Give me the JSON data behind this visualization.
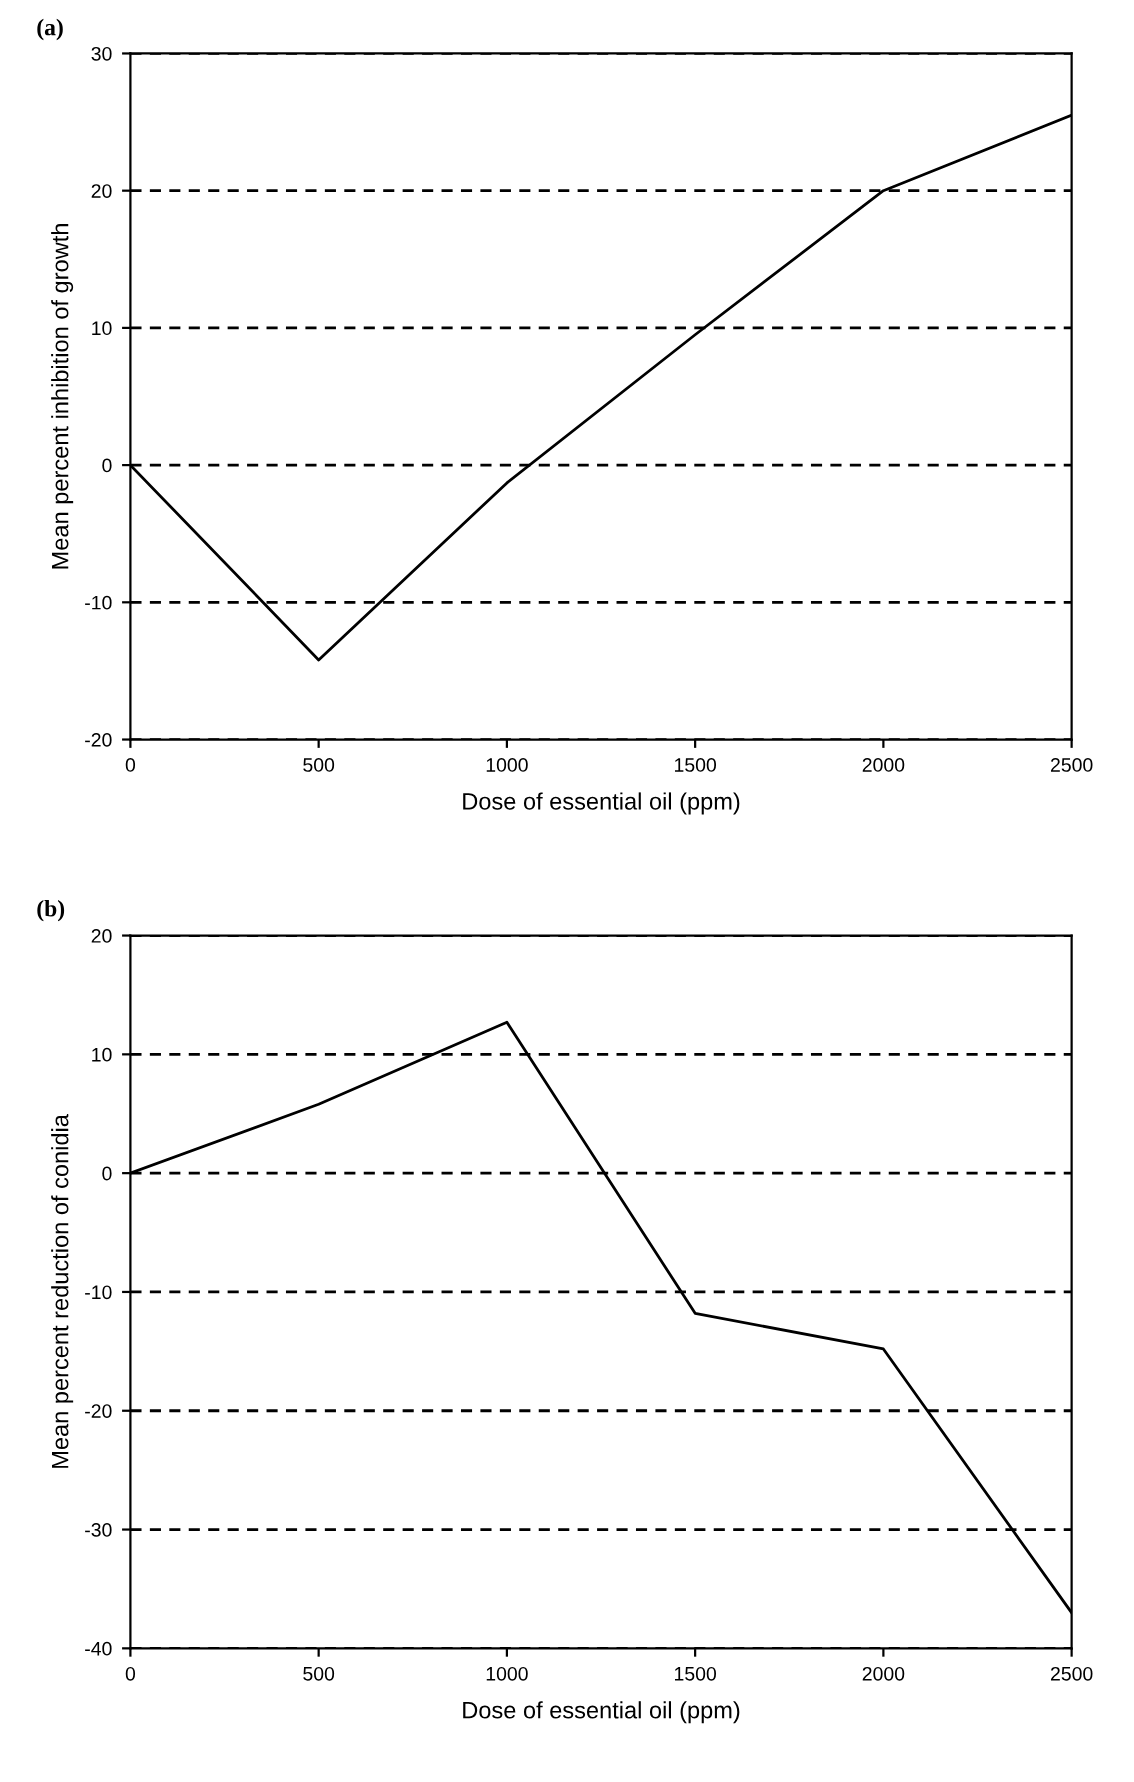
{
  "chart_data": [
    {
      "type": "line",
      "title": "(a)",
      "xlabel": "Dose of essential oil (ppm)",
      "ylabel": "Mean percent inhibition of growth",
      "x": [
        0,
        500,
        1000,
        1500,
        2000,
        2500
      ],
      "series": [
        {
          "color": "#000000",
          "values": [
            0,
            -14.2,
            -1.3,
            9.5,
            20,
            25.5
          ]
        }
      ],
      "xlim": [
        0,
        2500
      ],
      "xticks": [
        0,
        500,
        1000,
        1500,
        2000,
        2500
      ],
      "ylim": [
        -20,
        30
      ],
      "yticks": [
        -20,
        -10,
        0,
        10,
        20,
        30
      ],
      "grid": "y",
      "legend": false,
      "marker": "none",
      "line_style": "solid"
    },
    {
      "type": "line",
      "title": "(b)",
      "xlabel": "Dose of essential oil (ppm)",
      "ylabel": "Mean percent reduction of conidia",
      "x": [
        0,
        500,
        1000,
        1500,
        2000,
        2500
      ],
      "series": [
        {
          "color": "#000000",
          "values": [
            0,
            5.8,
            12.7,
            -11.8,
            -14.8,
            -37
          ]
        }
      ],
      "xlim": [
        0,
        2500
      ],
      "xticks": [
        0,
        500,
        1000,
        1500,
        2000,
        2500
      ],
      "ylim": [
        -40,
        20
      ],
      "yticks": [
        -40,
        -30,
        -20,
        -10,
        0,
        10,
        20
      ],
      "grid": "y",
      "legend": false,
      "marker": "none",
      "line_style": "solid"
    }
  ]
}
